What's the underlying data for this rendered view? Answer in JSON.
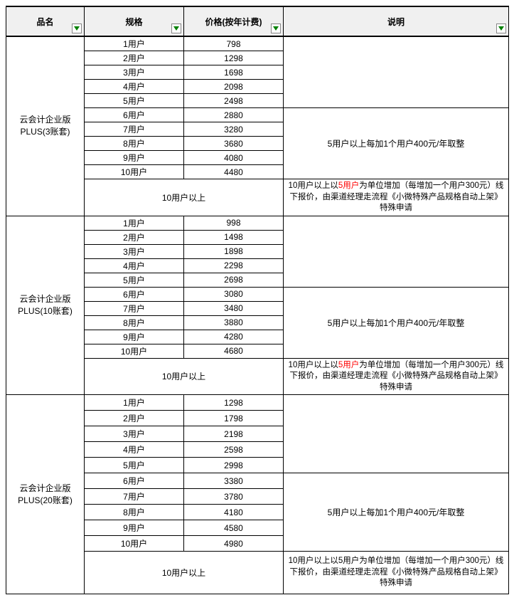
{
  "headers": {
    "name": "品名",
    "spec": "规格",
    "price": "价格(按年计费)",
    "desc": "说明"
  },
  "colors": {
    "header_bg": "#f0f0f0",
    "border": "#000000",
    "text": "#000000",
    "highlight": "#ff0000",
    "filter_arrow": "#008000",
    "filter_border": "#888888",
    "background": "#ffffff"
  },
  "products": [
    {
      "name": "云会计企业版PLUS(3账套)",
      "rows": [
        {
          "spec": "1用户",
          "price": "798"
        },
        {
          "spec": "2用户",
          "price": "1298"
        },
        {
          "spec": "3用户",
          "price": "1698"
        },
        {
          "spec": "4用户",
          "price": "2098"
        },
        {
          "spec": "5用户",
          "price": "2498"
        },
        {
          "spec": "6用户",
          "price": "2880"
        },
        {
          "spec": "7用户",
          "price": "3280"
        },
        {
          "spec": "8用户",
          "price": "3680"
        },
        {
          "spec": "9用户",
          "price": "4080"
        },
        {
          "spec": "10用户",
          "price": "4480"
        }
      ],
      "desc1": "5用户以上每加1个用户400元/年取整",
      "over10_spec": "10用户以上",
      "over10_desc_pre": "10用户以上以",
      "over10_desc_highlight": "5用户",
      "over10_desc_post": "为单位增加（每增加一个用户300元）线下报价，由渠道经理走流程《小微特殊产品规格自动上架》特殊申请",
      "tall": false
    },
    {
      "name": "云会计企业版PLUS(10账套)",
      "rows": [
        {
          "spec": "1用户",
          "price": "998"
        },
        {
          "spec": "2用户",
          "price": "1498"
        },
        {
          "spec": "3用户",
          "price": "1898"
        },
        {
          "spec": "4用户",
          "price": "2298"
        },
        {
          "spec": "5用户",
          "price": "2698"
        },
        {
          "spec": "6用户",
          "price": "3080"
        },
        {
          "spec": "7用户",
          "price": "3480"
        },
        {
          "spec": "8用户",
          "price": "3880"
        },
        {
          "spec": "9用户",
          "price": "4280"
        },
        {
          "spec": "10用户",
          "price": "4680"
        }
      ],
      "desc1": "5用户以上每加1个用户400元/年取整",
      "over10_spec": "10用户以上",
      "over10_desc_pre": "10用户以上以",
      "over10_desc_highlight": "5用户",
      "over10_desc_post": "为单位增加（每增加一个用户300元）线下报价，由渠道经理走流程《小微特殊产品规格自动上架》特殊申请",
      "tall": false
    },
    {
      "name": "云会计企业版PLUS(20账套)",
      "rows": [
        {
          "spec": "1用户",
          "price": "1298"
        },
        {
          "spec": "2用户",
          "price": "1798"
        },
        {
          "spec": "3用户",
          "price": "2198"
        },
        {
          "spec": "4用户",
          "price": "2598"
        },
        {
          "spec": "5用户",
          "price": "2998"
        },
        {
          "spec": "6用户",
          "price": "3380"
        },
        {
          "spec": "7用户",
          "price": "3780"
        },
        {
          "spec": "8用户",
          "price": "4180"
        },
        {
          "spec": "9用户",
          "price": "4580"
        },
        {
          "spec": "10用户",
          "price": "4980"
        }
      ],
      "desc1": "5用户以上每加1个用户400元/年取整",
      "over10_spec": "10用户以上",
      "over10_desc_full": "10用户以上以5用户为单位增加（每增加一个用户300元）线下报价，由渠道经理走流程《小微特殊产品规格自动上架》特殊申请",
      "tall": true
    }
  ]
}
